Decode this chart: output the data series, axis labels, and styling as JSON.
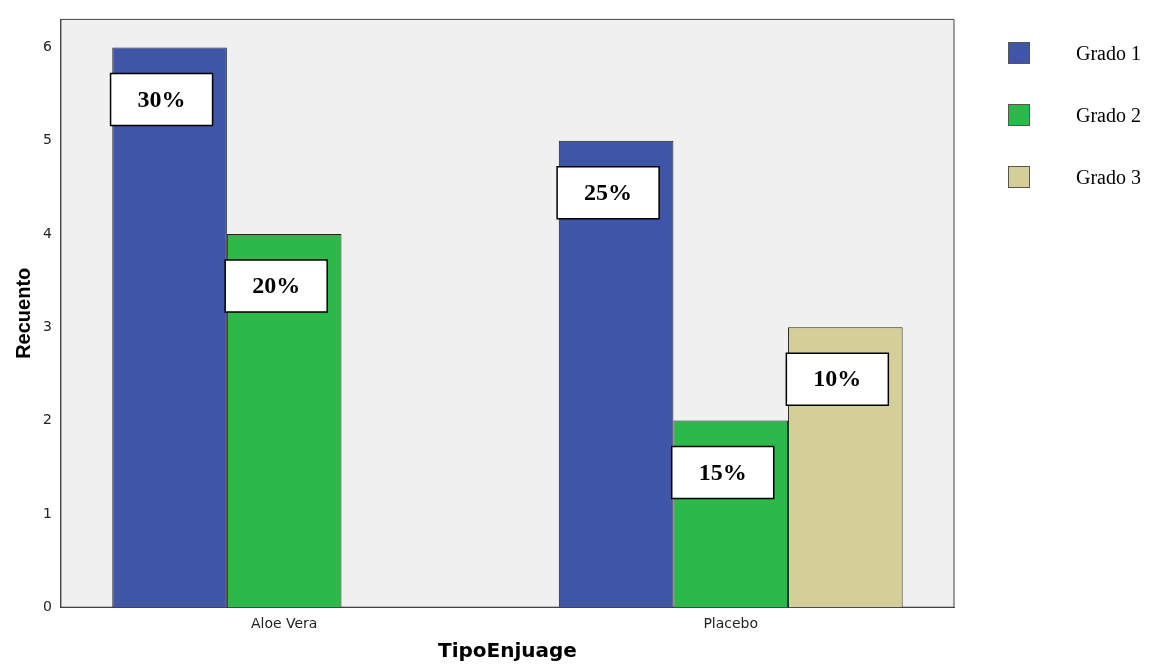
{
  "chart_data": {
    "type": "bar",
    "xlabel": "TipoEnjuage",
    "ylabel": "Recuento",
    "categories": [
      "Aloe Vera",
      "Placebo"
    ],
    "series": [
      {
        "name": "Grado 1",
        "color": "#3f55a8",
        "values": [
          6,
          5
        ]
      },
      {
        "name": "Grado 2",
        "color": "#2db84a",
        "values": [
          4,
          2
        ]
      },
      {
        "name": "Grado 3",
        "color": "#d4cf98",
        "values": [
          null,
          3
        ]
      }
    ],
    "annotations": [
      "30%",
      "20%",
      "25%",
      "15%",
      "10%"
    ],
    "ylim": [
      0,
      6.3
    ],
    "yticks": [
      0,
      1,
      2,
      3,
      4,
      5,
      6
    ],
    "grid": false,
    "legend": "top right"
  }
}
